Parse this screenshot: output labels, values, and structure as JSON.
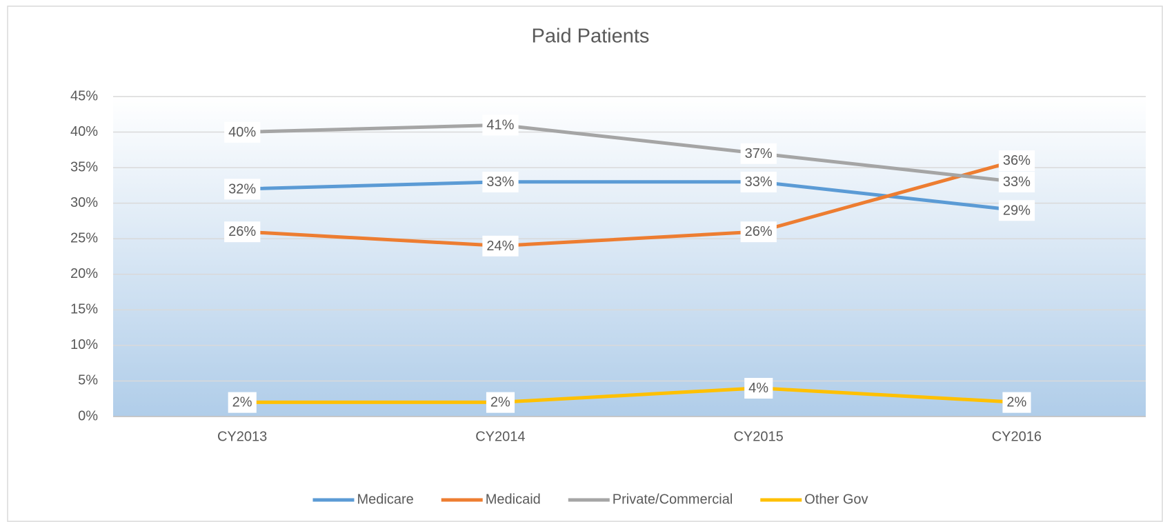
{
  "chart_data": {
    "type": "line",
    "title": "Paid Patients",
    "categories": [
      "CY2013",
      "CY2014",
      "CY2015",
      "CY2016"
    ],
    "series": [
      {
        "name": "Medicare",
        "color": "#5b9bd5",
        "values": [
          32,
          33,
          33,
          29
        ],
        "value_labels": [
          "32%",
          "33%",
          "33%",
          "29%"
        ]
      },
      {
        "name": "Medicaid",
        "color": "#ed7d31",
        "values": [
          26,
          24,
          26,
          36
        ],
        "value_labels": [
          "26%",
          "24%",
          "26%",
          "36%"
        ]
      },
      {
        "name": "Private/Commercial",
        "color": "#a5a5a5",
        "values": [
          40,
          41,
          37,
          33
        ],
        "value_labels": [
          "40%",
          "41%",
          "37%",
          "33%"
        ]
      },
      {
        "name": "Other Gov",
        "color": "#ffc000",
        "values": [
          2,
          2,
          4,
          2
        ],
        "value_labels": [
          "2%",
          "2%",
          "4%",
          "2%"
        ]
      }
    ],
    "ylim": [
      0,
      45
    ],
    "yticks": [
      {
        "value": 0,
        "label": "0%"
      },
      {
        "value": 5,
        "label": "5%"
      },
      {
        "value": 10,
        "label": "10%"
      },
      {
        "value": 15,
        "label": "15%"
      },
      {
        "value": 20,
        "label": "20%"
      },
      {
        "value": 25,
        "label": "25%"
      },
      {
        "value": 30,
        "label": "30%"
      },
      {
        "value": 35,
        "label": "35%"
      },
      {
        "value": 40,
        "label": "40%"
      },
      {
        "value": 45,
        "label": "45%"
      }
    ],
    "grid": true,
    "legend": "bottom"
  }
}
